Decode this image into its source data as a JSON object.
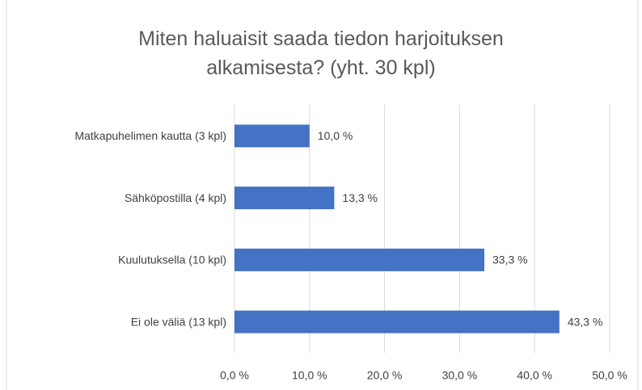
{
  "chart_data": {
    "type": "bar",
    "orientation": "horizontal",
    "title": "Miten haluaisit saada tiedon harjoituksen alkamisesta? (yht. 30 kpl)",
    "categories": [
      "Matkapuhelimen kautta (3 kpl)",
      "Sähköpostilla (4 kpl)",
      "Kuulutuksella (10 kpl)",
      "Ei ole väliä (13 kpl)"
    ],
    "values": [
      10,
      13.3,
      33.3,
      43.3
    ],
    "value_labels": [
      "10,0 %",
      "13,3 %",
      "33,3 %",
      "43,3 %"
    ],
    "color": "#4472c4",
    "xlim": [
      0,
      50
    ],
    "xticks": [
      {
        "value": 0,
        "label": "0,0 %"
      },
      {
        "value": 10,
        "label": "10,0 %"
      },
      {
        "value": 20,
        "label": "20,0 %"
      },
      {
        "value": 30,
        "label": "30,0 %"
      },
      {
        "value": 40,
        "label": "40,0 %"
      },
      {
        "value": 50,
        "label": "50,0 %"
      }
    ],
    "grid": true
  }
}
